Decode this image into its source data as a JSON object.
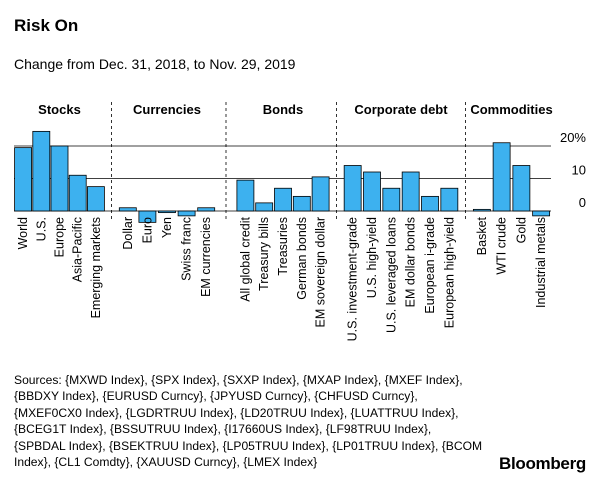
{
  "header": {
    "title": "Risk On",
    "subtitle": "Change from Dec. 31, 2018, to Nov. 29, 2019"
  },
  "chart_data": {
    "type": "bar",
    "title": "Risk On",
    "subtitle": "Change from Dec. 31, 2018, to Nov. 29, 2019",
    "ylabel": "",
    "ylim": [
      -5,
      20
    ],
    "yticks": [
      0,
      10,
      20
    ],
    "ytick_labels": [
      "0",
      "10",
      "20%"
    ],
    "bar_color": "#3db1ef",
    "groups": [
      {
        "name": "Stocks",
        "categories": [
          "World",
          "U.S.",
          "Europe",
          "Asia-Pacific",
          "Emerging markets"
        ],
        "values": [
          19.5,
          24.5,
          20,
          11,
          7.5
        ]
      },
      {
        "name": "Currencies",
        "categories": [
          "Dollar",
          "Euro",
          "Yen",
          "Swiss franc",
          "EM currencies"
        ],
        "values": [
          1,
          -3.5,
          -0.5,
          -1.5,
          1
        ]
      },
      {
        "name": "Bonds",
        "categories": [
          "All global credit",
          "Treasury bills",
          "Treasuries",
          "German bonds",
          "EM sovereign dollar"
        ],
        "values": [
          9.5,
          2.5,
          7,
          4.5,
          10.5
        ]
      },
      {
        "name": "Corporate debt",
        "categories": [
          "U.S. investment-grade",
          "U.S. high-yield",
          "U.S. leveraged loans",
          "EM dollar bonds",
          "European i-grade",
          "European high-yield"
        ],
        "values": [
          14,
          12,
          7,
          12,
          4.5,
          7
        ]
      },
      {
        "name": "Commodities",
        "categories": [
          "Basket",
          "WTI crude",
          "Gold",
          "Industrial metals"
        ],
        "values": [
          0.5,
          21,
          14,
          -1.5
        ]
      }
    ]
  },
  "footer": {
    "sources": "Sources: {MXWD Index}, {SPX Index}, {SXXP Index}, {MXAP Index}, {MXEF Index}, {BBDXY Index}, {EURUSD Curncy}, {JPYUSD Curncy}, {CHFUSD Curncy}, {MXEF0CX0 Index}, {LGDRTRUU Index}, {LD20TRUU Index}, {LUATTRUU Index}, {BCEG1T Index}, {BSSUTRUU Index}, {I17660US Index}, {LF98TRUU Index}, {SPBDAL Index}, {BSEKTRUU Index}, {LP05TRUU Index}, {LP01TRUU Index}, {BCOM Index}, {CL1 Comdty}, {XAUUSD Curncy}, {LMEX Index}",
    "logo": "Bloomberg"
  }
}
